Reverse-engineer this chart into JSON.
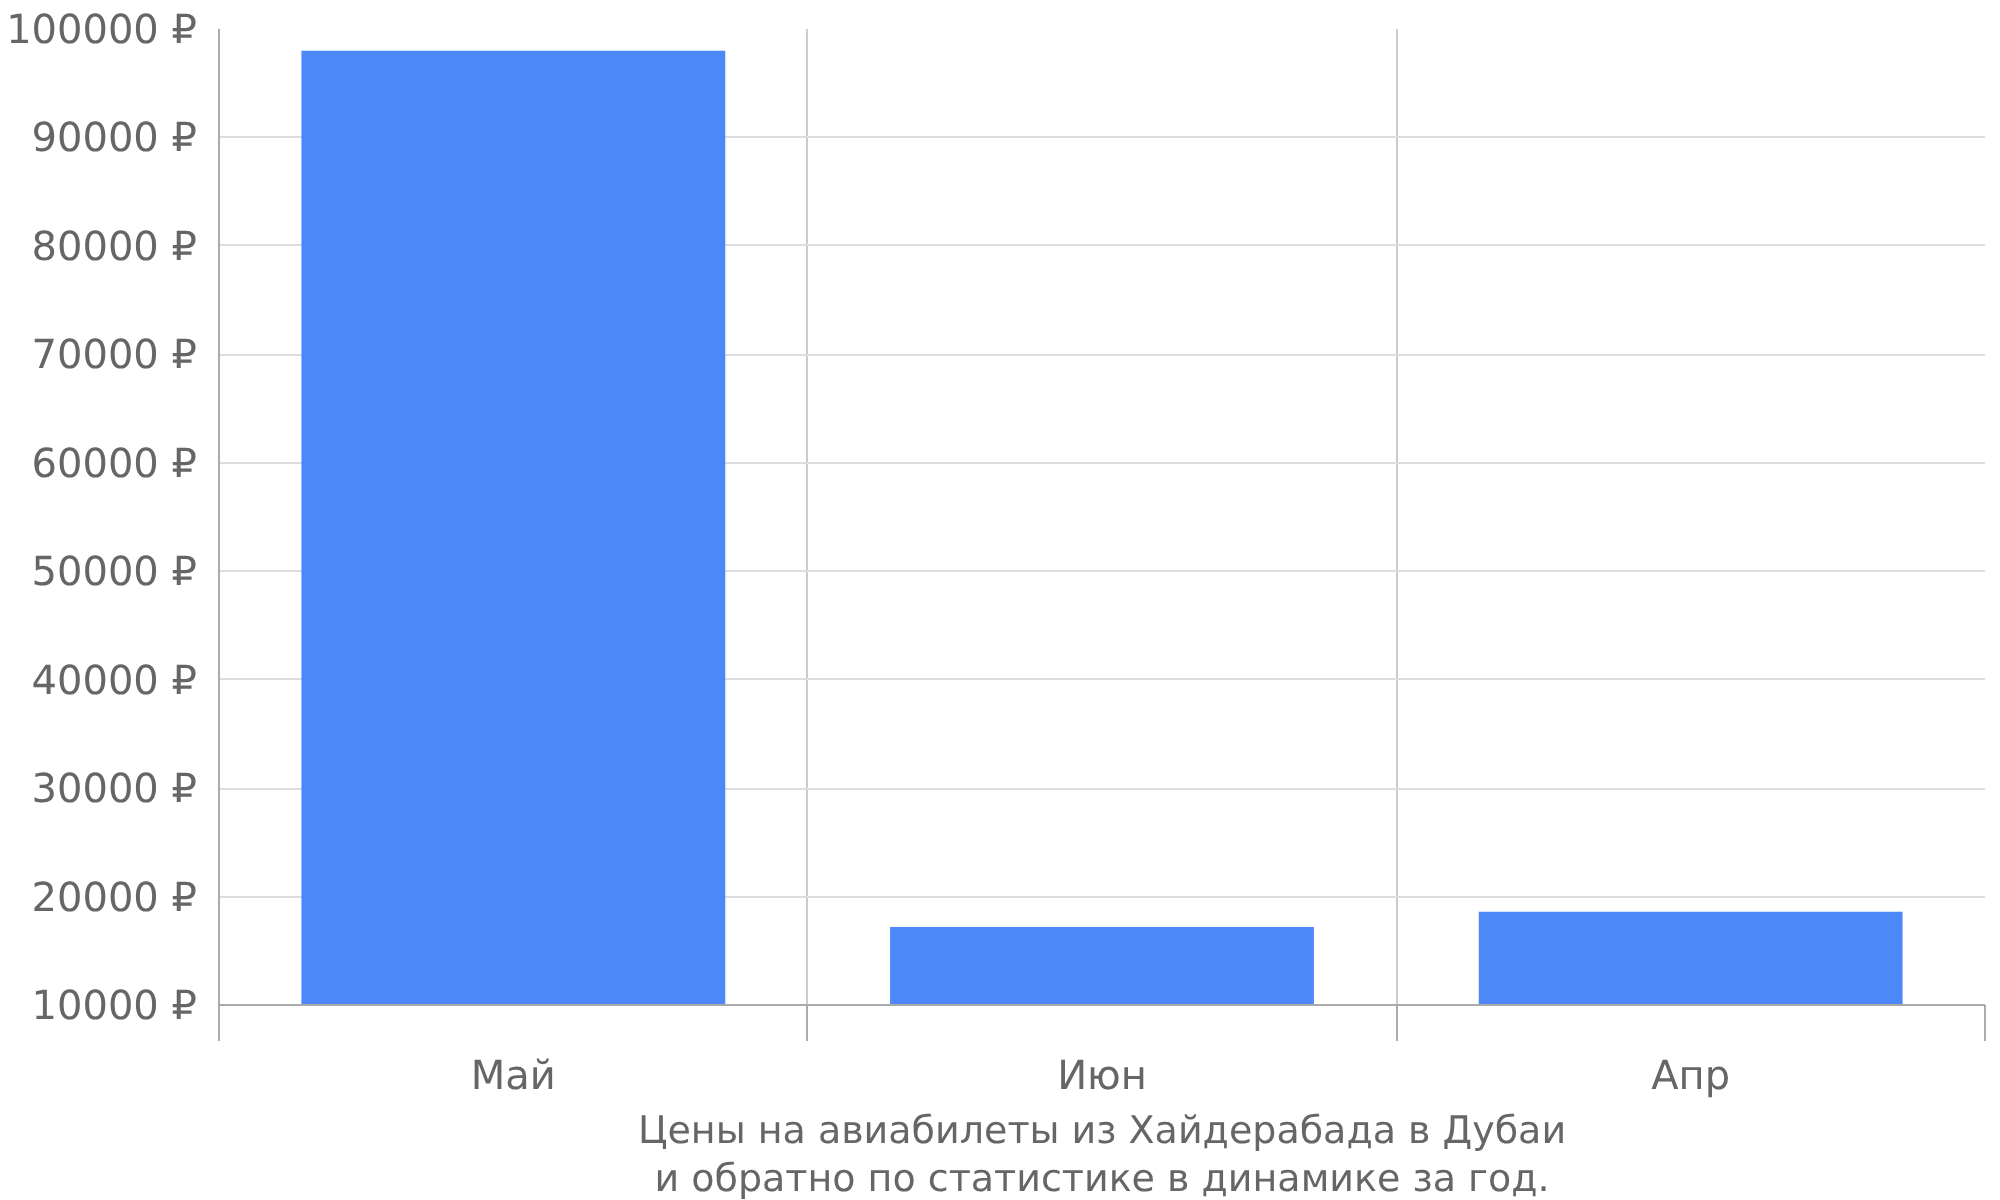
{
  "chart_data": {
    "type": "bar",
    "title": "Цены на авиабилеты из Хайдерабада в Дубаи и обратно по статистике в динамике за год.",
    "categories": [
      "Май",
      "Июн",
      "Апр"
    ],
    "values": [
      98000,
      17200,
      18600
    ],
    "color": "#4d88f9",
    "ylim": [
      10000,
      100000
    ],
    "yticks": [
      {
        "value": 10000,
        "label": "10000 ₽"
      },
      {
        "value": 20000,
        "label": "20000 ₽"
      },
      {
        "value": 30000,
        "label": "30000 ₽"
      },
      {
        "value": 40000,
        "label": "40000 ₽"
      },
      {
        "value": 50000,
        "label": "50000 ₽"
      },
      {
        "value": 60000,
        "label": "60000 ₽"
      },
      {
        "value": 70000,
        "label": "70000 ₽"
      },
      {
        "value": 80000,
        "label": "80000 ₽"
      },
      {
        "value": 90000,
        "label": "90000 ₽"
      },
      {
        "value": 100000,
        "label": "100000 ₽"
      }
    ],
    "grid": true
  }
}
